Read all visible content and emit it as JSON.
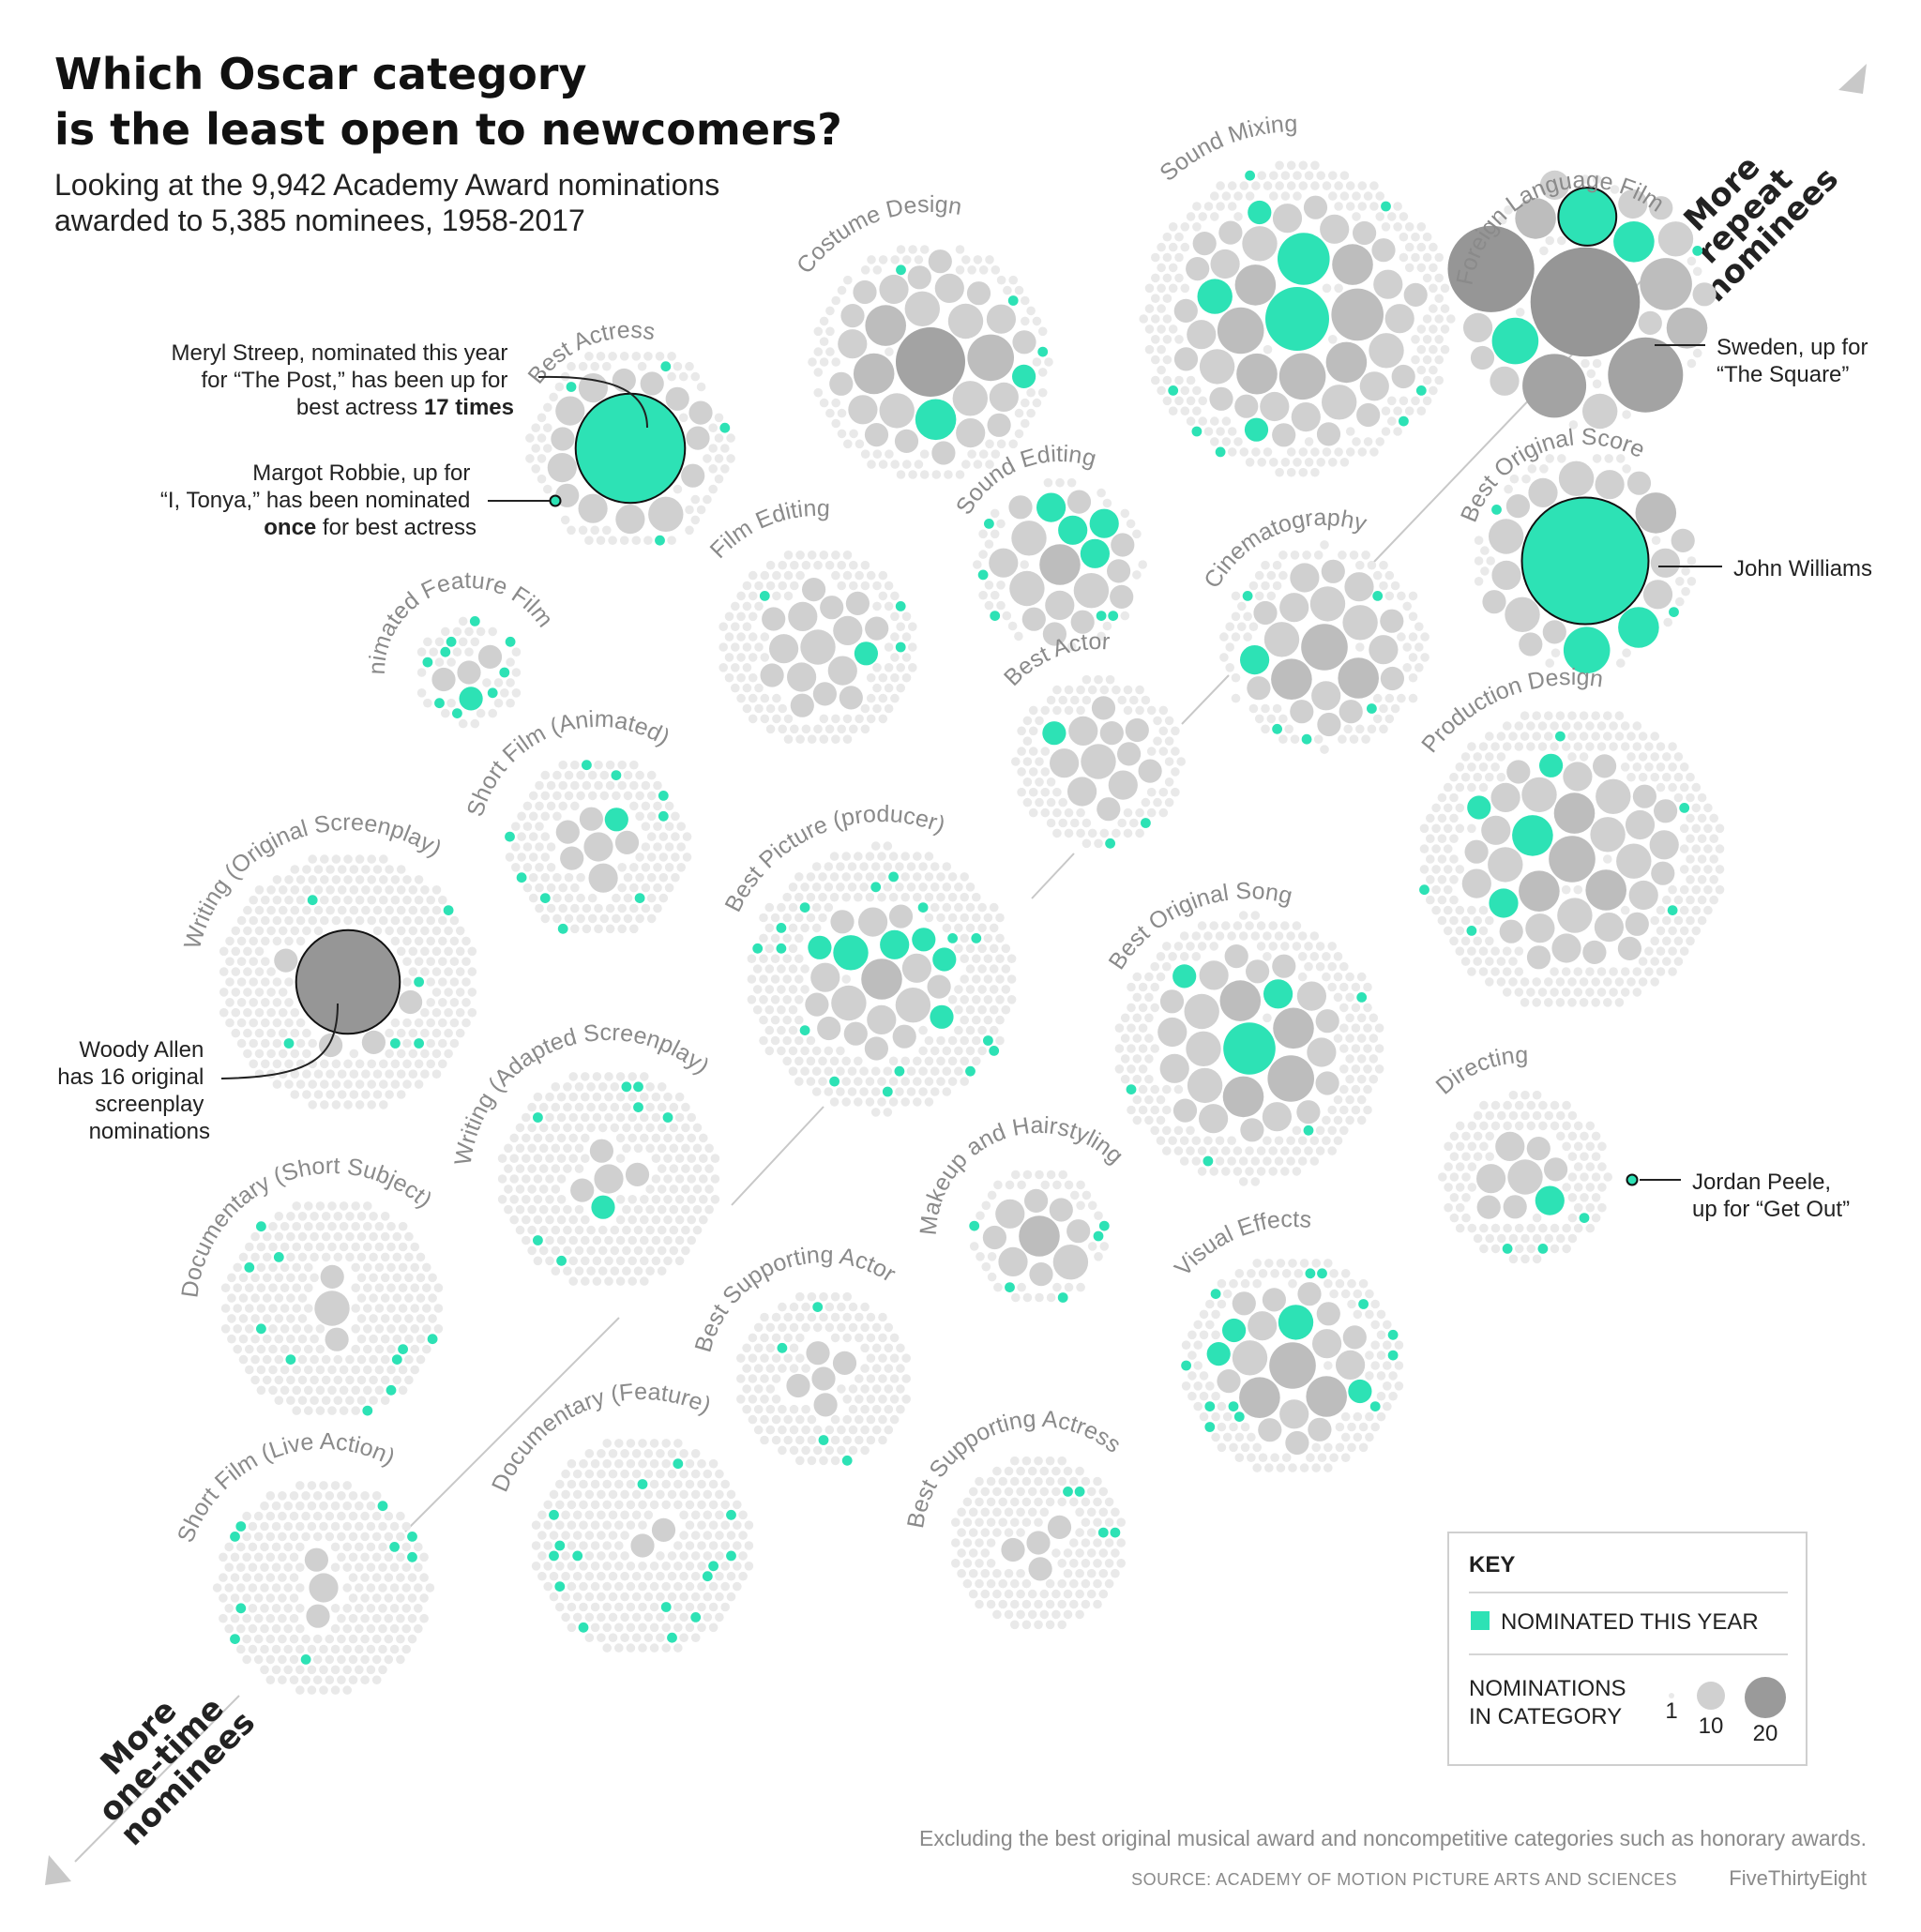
{
  "title_line1": "Which Oscar category",
  "title_line2": "is the least open to newcomers?",
  "subtitle_line1": "Looking at the 9,942 Academy Award nominations",
  "subtitle_line2": "awarded to 5,385 nominees, 1958-2017",
  "axis_top": [
    "More",
    "repeat",
    "nominees"
  ],
  "axis_bottom": [
    "More",
    "one-time",
    "nominees"
  ],
  "annotations": {
    "streep": [
      "Meryl Streep, nominated this year",
      "for “The Post,” has been up for",
      "best actress ",
      "17 times"
    ],
    "robbie": [
      "Margot Robbie, up for",
      "“I, Tonya,” has been nominated",
      "once",
      " for best actress"
    ],
    "allen": [
      "Woody Allen",
      "has 16 original",
      "screenplay",
      "nominations"
    ],
    "sweden": [
      "Sweden, up for",
      "“The Square”"
    ],
    "williams": [
      "John Williams"
    ],
    "peele": [
      "Jordan Peele,",
      "up for “Get Out”"
    ]
  },
  "key": {
    "title": "KEY",
    "nominated_label": "NOMINATED THIS YEAR",
    "size_label_line1": "NOMINATIONS",
    "size_label_line2": "IN CATEGORY",
    "size_values": [
      "1",
      "10",
      "20"
    ]
  },
  "footnote": "Excluding the best original musical award and noncompetitive categories such as honorary awards.",
  "source": "SOURCE: ACADEMY OF MOTION PICTURE ARTS AND SCIENCES",
  "brand": "FiveThirtyEight",
  "colors": {
    "nominated": "#2de2b5",
    "single": "#e9e9e9",
    "light": "#d0d0d0",
    "mid": "#bdbdbd",
    "dark": "#a3a3a3",
    "darkest": "#969696",
    "label": "#8a8a8a",
    "axis": "#c8c8c8"
  },
  "chart_data": {
    "type": "packed-bubble",
    "categories": [
      {
        "name": "Sound Mixing",
        "nominees": 330,
        "big": [
          9,
          7,
          7,
          6,
          6,
          5,
          5,
          5,
          5,
          4,
          4,
          4,
          4,
          4,
          3,
          3,
          3,
          3,
          3,
          3,
          3,
          3,
          3,
          2,
          2,
          2,
          2,
          2,
          2,
          2,
          2,
          2,
          2,
          2,
          2,
          2,
          2,
          2,
          2,
          2
        ],
        "nominated_big": 5,
        "nominated_small": 7
      },
      {
        "name": "Foreign Language Film",
        "nominees": 60,
        "big": [
          17,
          13,
          11,
          9,
          8,
          7,
          6,
          5,
          5,
          5,
          4,
          4,
          3,
          3,
          3,
          3,
          2,
          2,
          2,
          2
        ],
        "nominated_big": 3,
        "nominated_small": 1
      },
      {
        "name": "Costume Design",
        "nominees": 170,
        "big": [
          10,
          6,
          5,
          5,
          5,
          4,
          4,
          4,
          4,
          3,
          3,
          3,
          3,
          3,
          3,
          3,
          2,
          2,
          2,
          2,
          2,
          2,
          2,
          2,
          2,
          2,
          2,
          2
        ],
        "nominated_big": 2,
        "nominated_small": 3
      },
      {
        "name": "Best Actress",
        "nominees": 120,
        "big": [
          17,
          4,
          3,
          3,
          3,
          3,
          3,
          2,
          2,
          2,
          2,
          2,
          2,
          2,
          2
        ],
        "nominated_big": 1,
        "nominated_small": 4
      },
      {
        "name": "Sound Editing",
        "nominees": 80,
        "big": [
          5,
          4,
          4,
          4,
          3,
          3,
          3,
          3,
          3,
          3,
          2,
          2,
          2,
          2,
          2,
          2,
          2,
          2
        ],
        "nominated_big": 4,
        "nominated_small": 5
      },
      {
        "name": "Best Original Score",
        "nominees": 90,
        "big": [
          20,
          6,
          5,
          5,
          4,
          4,
          4,
          3,
          3,
          3,
          3,
          3,
          2,
          2,
          2,
          2,
          2,
          2
        ],
        "nominated_big": 3,
        "nominated_small": 2
      },
      {
        "name": "Film Editing",
        "nominees": 180,
        "big": [
          4,
          3,
          3,
          3,
          3,
          3,
          2,
          2,
          2,
          2,
          2,
          2,
          2,
          2,
          2,
          2
        ],
        "nominated_big": 1,
        "nominated_small": 3
      },
      {
        "name": "Cinematography",
        "nominees": 150,
        "big": [
          6,
          5,
          5,
          4,
          4,
          4,
          3,
          3,
          3,
          3,
          3,
          3,
          2,
          2,
          2,
          2,
          2,
          2,
          2,
          2
        ],
        "nominated_big": 1,
        "nominated_small": 5
      },
      {
        "name": "Animated Feature Film",
        "nominees": 60,
        "big": [
          2,
          2,
          2,
          2
        ],
        "nominated_big": 1,
        "nominated_small": 9
      },
      {
        "name": "Best Actor",
        "nominees": 130,
        "big": [
          4,
          3,
          3,
          3,
          3,
          2,
          2,
          2,
          2,
          2,
          2,
          2
        ],
        "nominated_big": 2,
        "nominated_small": 2
      },
      {
        "name": "Short Film (Animated)",
        "nominees": 180,
        "big": [
          3,
          3,
          2,
          2,
          2,
          2,
          2
        ],
        "nominated_big": 1,
        "nominated_small": 9
      },
      {
        "name": "Writing (Original Screenplay)",
        "nominees": 340,
        "big": [
          16,
          2,
          2,
          2,
          2
        ],
        "nominated_big": 0,
        "nominated_small": 6
      },
      {
        "name": "Best Picture (producer)",
        "nominees": 360,
        "big": [
          5,
          4,
          4,
          4,
          3,
          3,
          3,
          3,
          3,
          2,
          2,
          2,
          2,
          2,
          2,
          2,
          2,
          2,
          2,
          2,
          2
        ],
        "nominated_big": 7,
        "nominated_small": 17
      },
      {
        "name": "Best Original Song",
        "nominees": 290,
        "big": [
          7,
          6,
          5,
          5,
          5,
          4,
          4,
          4,
          3,
          3,
          3,
          3,
          3,
          3,
          3,
          3,
          2,
          2,
          2,
          2,
          2,
          2,
          2,
          2,
          2,
          2
        ],
        "nominated_big": 4,
        "nominated_small": 4
      },
      {
        "name": "Production Design",
        "nominees": 390,
        "big": [
          6,
          5,
          5,
          5,
          5,
          4,
          4,
          4,
          4,
          4,
          4,
          3,
          3,
          3,
          3,
          3,
          3,
          3,
          3,
          3,
          3,
          3,
          2,
          2,
          2,
          2,
          2,
          2,
          2,
          2,
          2,
          2,
          2,
          2,
          2
        ],
        "nominated_big": 4,
        "nominated_small": 5
      },
      {
        "name": "Directing",
        "nominees": 140,
        "big": [
          4,
          3,
          3,
          3,
          2,
          2,
          2,
          2
        ],
        "nominated_big": 1,
        "nominated_small": 3
      },
      {
        "name": "Writing (Adapted Screenplay)",
        "nominees": 290,
        "big": [
          3,
          2,
          2,
          2,
          2
        ],
        "nominated_big": 1,
        "nominated_small": 7
      },
      {
        "name": "Makeup and Hairstyling",
        "nominees": 80,
        "big": [
          5,
          4,
          3,
          3,
          2,
          2,
          2,
          2,
          2
        ],
        "nominated_big": 0,
        "nominated_small": 7
      },
      {
        "name": "Documentary (Short Subject)",
        "nominees": 290,
        "big": [
          4,
          2,
          2
        ],
        "nominated_big": 0,
        "nominated_small": 10
      },
      {
        "name": "Best Supporting Actor",
        "nominees": 180,
        "big": [
          2,
          2,
          2,
          2,
          2
        ],
        "nominated_big": 0,
        "nominated_small": 4
      },
      {
        "name": "Visual Effects",
        "nominees": 190,
        "big": [
          6,
          5,
          5,
          4,
          4,
          3,
          3,
          3,
          3,
          2,
          2,
          2,
          2,
          2,
          2,
          2,
          2,
          2,
          2,
          2,
          2
        ],
        "nominated_big": 4,
        "nominated_small": 12
      },
      {
        "name": "Documentary (Feature)",
        "nominees": 310,
        "big": [
          2,
          2
        ],
        "nominated_big": 0,
        "nominated_small": 15
      },
      {
        "name": "Best Supporting Actress",
        "nominees": 180,
        "big": [
          2,
          2,
          2,
          2
        ],
        "nominated_big": 0,
        "nominated_small": 5
      },
      {
        "name": "Short Film (Live Action)",
        "nominees": 290,
        "big": [
          3,
          2,
          2
        ],
        "nominated_big": 0,
        "nominated_small": 9
      }
    ]
  }
}
